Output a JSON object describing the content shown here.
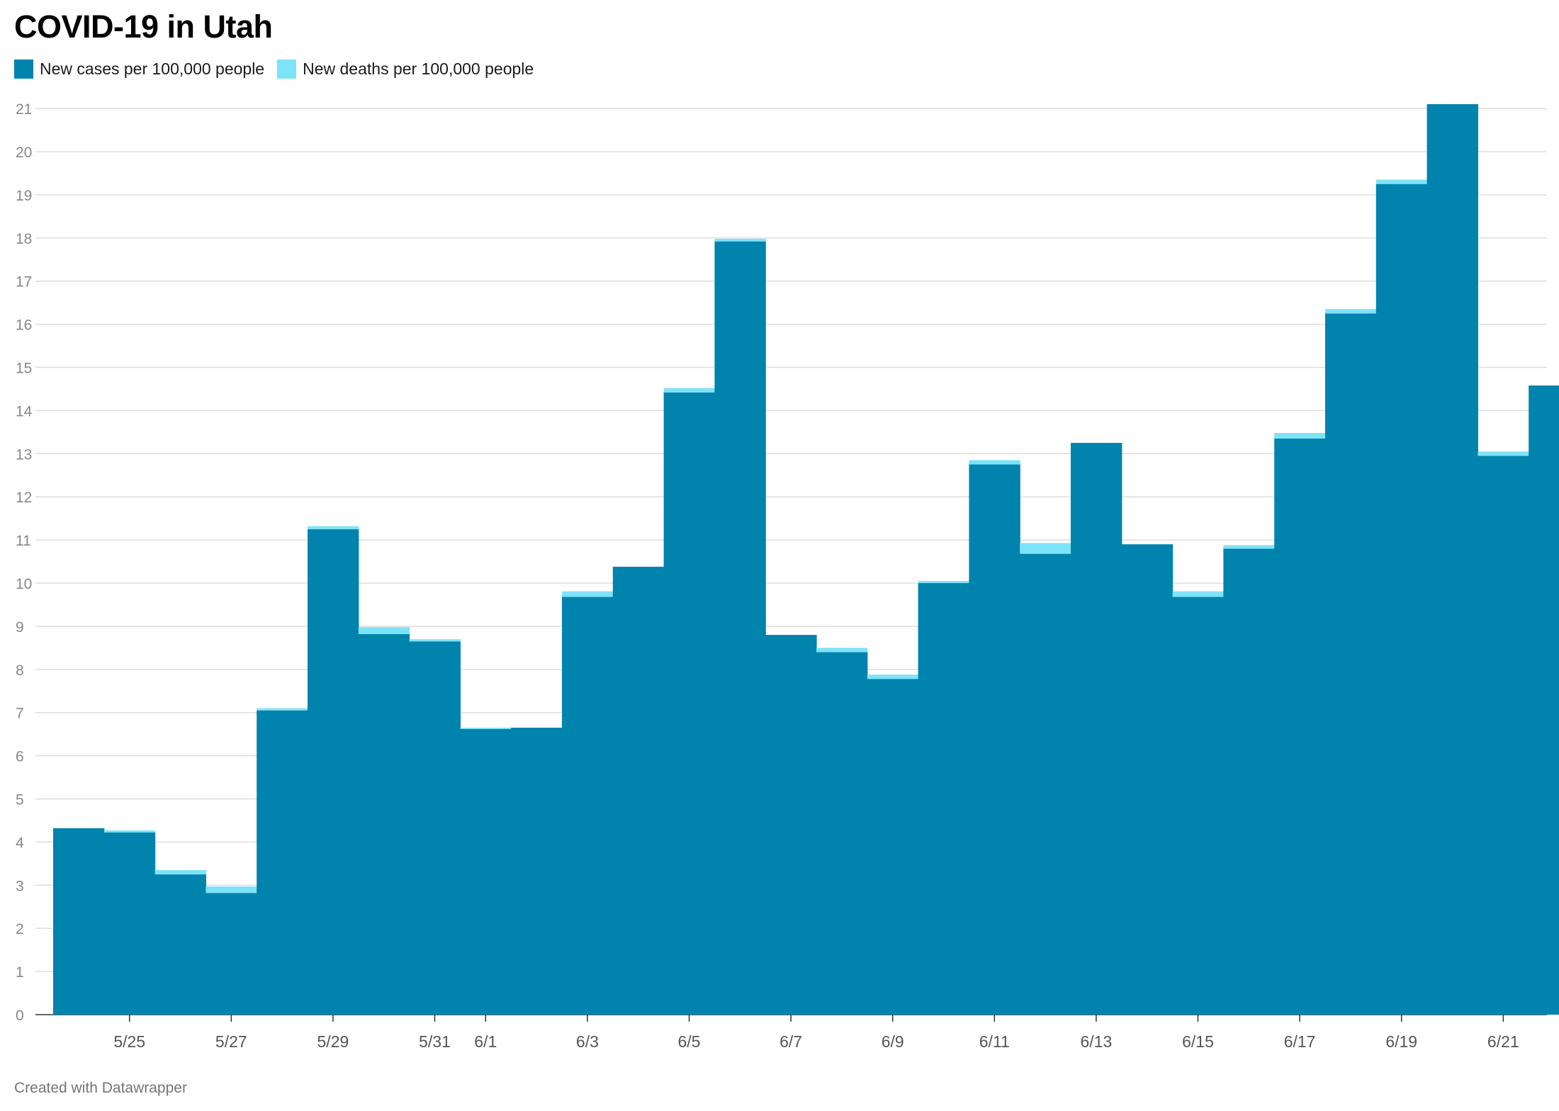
{
  "title": "COVID-19 in Utah",
  "credit": "Created with Datawrapper",
  "colors": {
    "cases": "#0083ad",
    "deaths": "#7de3f8",
    "grid": "#dddddd"
  },
  "chart_data": {
    "type": "area",
    "subtype": "stacked-step",
    "title": "COVID-19 in Utah",
    "legend_position": "top-left",
    "grid": true,
    "ylim": [
      0,
      21
    ],
    "y_ticks": [
      0,
      1,
      2,
      3,
      4,
      5,
      6,
      7,
      8,
      9,
      10,
      11,
      12,
      13,
      14,
      15,
      16,
      17,
      18,
      19,
      20,
      21
    ],
    "x_tick_labels": [
      "5/25",
      "5/27",
      "5/29",
      "5/31",
      "6/1",
      "6/3",
      "6/5",
      "6/7",
      "6/9",
      "6/11",
      "6/13",
      "6/15",
      "6/17",
      "6/19",
      "6/21"
    ],
    "x": [
      "5/24",
      "5/25",
      "5/26",
      "5/27",
      "5/28",
      "5/29",
      "5/30",
      "5/31",
      "6/1",
      "6/2",
      "6/3",
      "6/4",
      "6/5",
      "6/6",
      "6/7",
      "6/8",
      "6/9",
      "6/10",
      "6/11",
      "6/12",
      "6/13",
      "6/14",
      "6/15",
      "6/16",
      "6/17",
      "6/18",
      "6/19",
      "6/20",
      "6/21",
      "6/22"
    ],
    "series": [
      {
        "name": "New cases per 100,000 people",
        "values": [
          4.32,
          4.22,
          3.25,
          2.82,
          7.05,
          11.25,
          8.82,
          8.65,
          6.62,
          6.65,
          9.68,
          10.38,
          14.42,
          17.92,
          8.8,
          8.4,
          7.78,
          10.0,
          12.75,
          10.68,
          13.25,
          10.9,
          9.68,
          10.8,
          13.35,
          16.25,
          19.25,
          21.1,
          12.95,
          14.58
        ]
      },
      {
        "name": "New deaths per 100,000 people",
        "values": [
          0.0,
          0.05,
          0.1,
          0.15,
          0.05,
          0.07,
          0.16,
          0.05,
          0.03,
          0.0,
          0.13,
          0.0,
          0.1,
          0.06,
          0.0,
          0.1,
          0.1,
          0.05,
          0.1,
          0.25,
          0.0,
          0.0,
          0.13,
          0.08,
          0.13,
          0.1,
          0.1,
          0.0,
          0.1,
          0.0
        ]
      }
    ]
  }
}
